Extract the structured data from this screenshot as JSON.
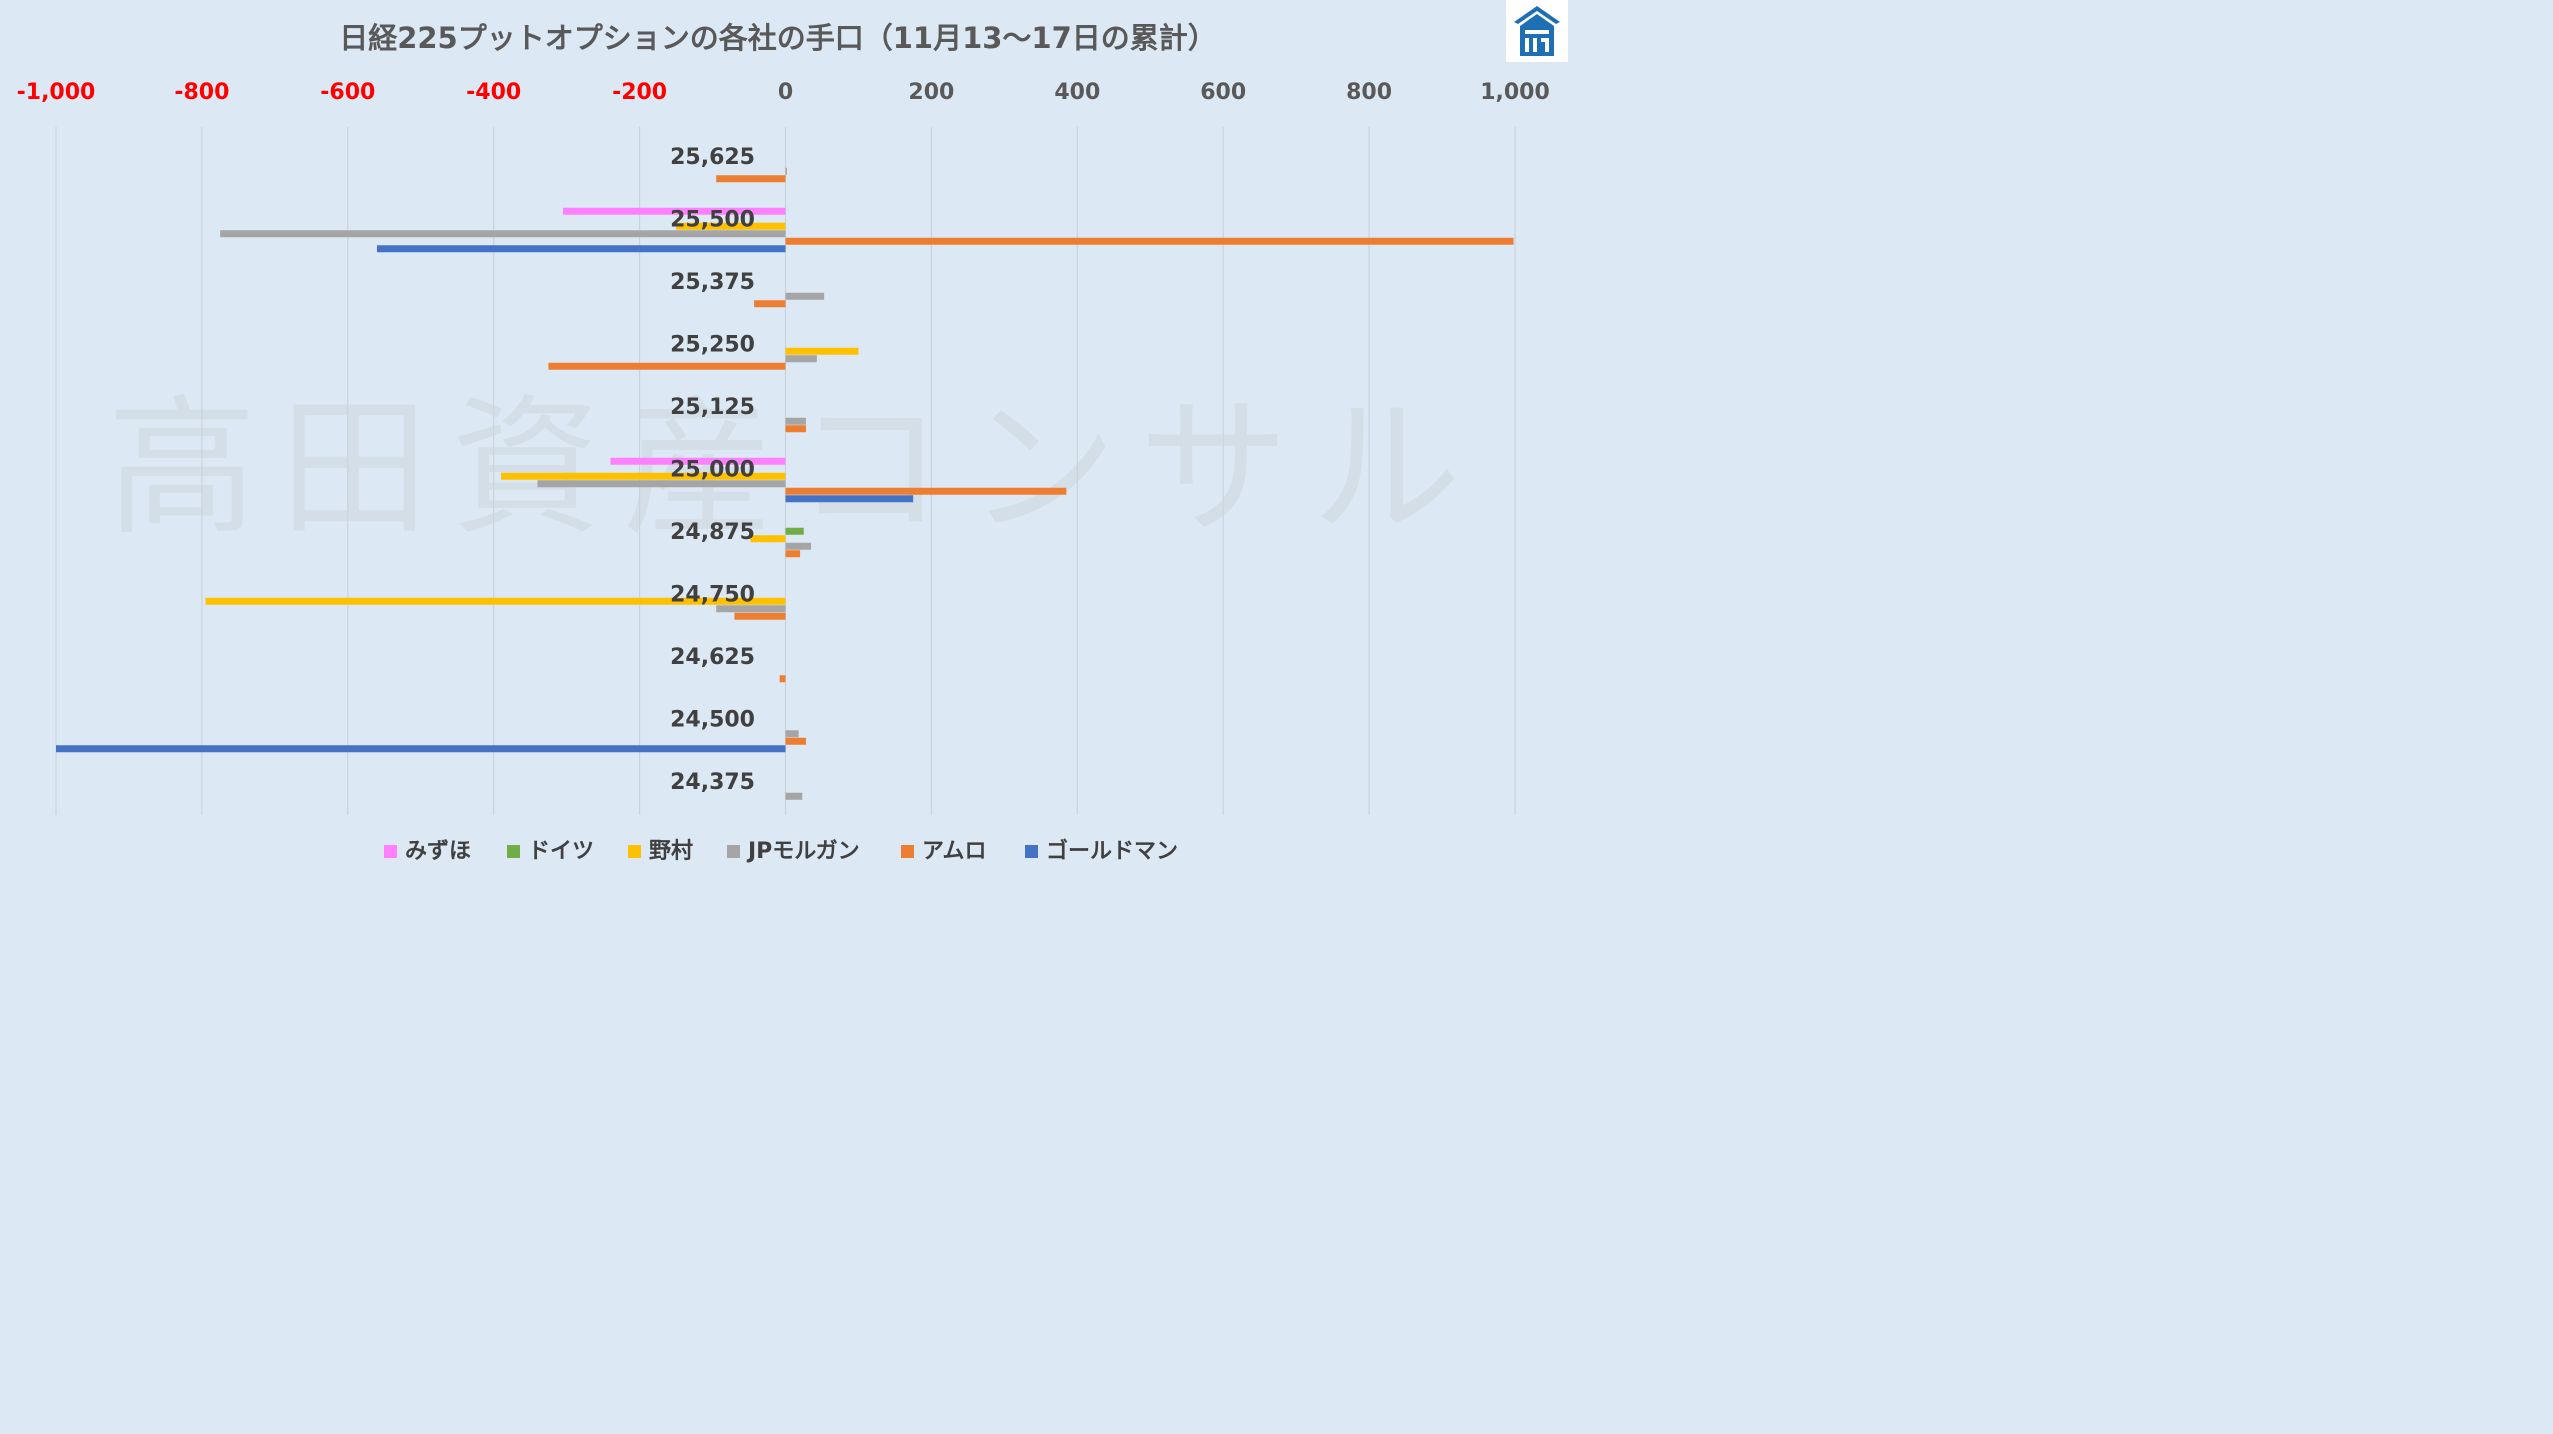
{
  "chart_data": {
    "type": "bar",
    "orientation": "horizontal",
    "title": "日経225プットオプションの各社の手口（11月13〜17日の累計）",
    "watermark": "高田資産コンサル",
    "xlim": [
      -1000,
      1000
    ],
    "xticks": [
      -1000,
      -800,
      -600,
      -400,
      -200,
      0,
      200,
      400,
      600,
      800,
      1000
    ],
    "xtick_labels": [
      "-1,000",
      "-800",
      "-600",
      "-400",
      "-200",
      "0",
      "200",
      "400",
      "600",
      "800",
      "1,000"
    ],
    "negative_tick_color": "#ff0000",
    "positive_tick_color": "#595959",
    "grid": true,
    "legend_position": "bottom",
    "categories": [
      "25,625",
      "25,500",
      "25,375",
      "25,250",
      "25,125",
      "25,000",
      "24,875",
      "24,750",
      "24,625",
      "24,500",
      "24,375"
    ],
    "series": [
      {
        "name": "みずほ",
        "color": "#ff80ff",
        "values": [
          0,
          -305,
          0,
          0,
          0,
          -240,
          0,
          0,
          0,
          0,
          0
        ]
      },
      {
        "name": "ドイツ",
        "color": "#70ad47",
        "values": [
          0,
          0,
          0,
          0,
          0,
          0,
          25,
          0,
          0,
          0,
          0
        ]
      },
      {
        "name": "野村",
        "color": "#ffc000",
        "values": [
          0,
          -150,
          0,
          100,
          0,
          -390,
          -48,
          -795,
          0,
          0,
          0
        ]
      },
      {
        "name": "JPモルガン",
        "color": "#a5a5a5",
        "values": [
          2,
          -775,
          53,
          43,
          28,
          -340,
          35,
          -95,
          0,
          18,
          23
        ]
      },
      {
        "name": "アムロ",
        "color": "#ed7d31",
        "values": [
          -95,
          998,
          -43,
          -325,
          28,
          385,
          20,
          -70,
          -8,
          28,
          0
        ]
      },
      {
        "name": "ゴールドマン",
        "color": "#4472c4",
        "values": [
          0,
          -560,
          0,
          0,
          0,
          175,
          0,
          0,
          0,
          -1000,
          0
        ]
      }
    ]
  },
  "logo": {
    "name": "house-logo-icon"
  }
}
